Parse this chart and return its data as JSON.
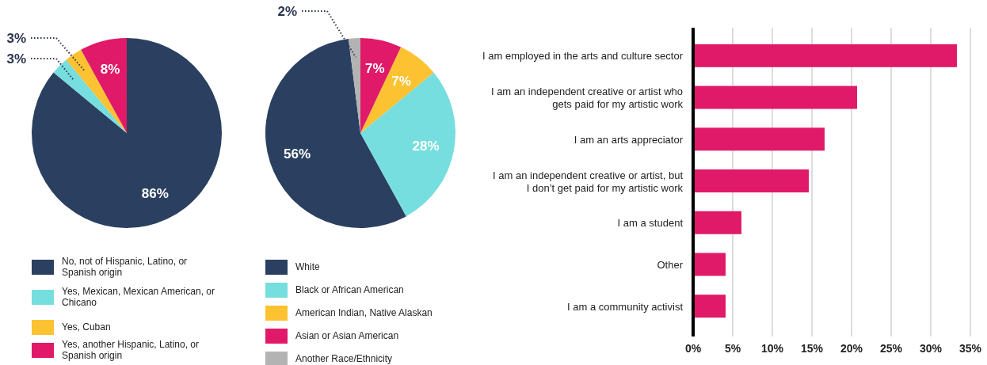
{
  "chart_data": [
    {
      "type": "pie",
      "categories": [
        "No, not of Hispanic, Latino, or Spanish origin",
        "Yes, Mexican, Mexican American, or Chicano",
        "Yes, Cuban",
        "Yes, another Hispanic, Latino, or Spanish origin"
      ],
      "values": [
        86,
        3,
        3,
        8
      ],
      "colors": [
        "#2b4060",
        "#76dede",
        "#fcc232",
        "#e01a68"
      ],
      "value_labels": [
        "86%",
        "3%",
        "3%",
        "8%"
      ],
      "legend": "bottom"
    },
    {
      "type": "pie",
      "categories": [
        "White",
        "Black or African American",
        "American Indian, Native Alaskan",
        "Asian or Asian American",
        "Another Race/Ethnicity"
      ],
      "values": [
        56,
        28,
        7,
        7,
        2
      ],
      "colors": [
        "#2b4060",
        "#76dede",
        "#fcc232",
        "#e01a68",
        "#b3b3b3"
      ],
      "value_labels": [
        "56%",
        "28%",
        "7%",
        "7%",
        "2%"
      ],
      "legend": "bottom"
    },
    {
      "type": "bar",
      "orientation": "horizontal",
      "categories": [
        "I am employed in the arts and culture sector",
        "I am an independent creative or artist who gets paid for my artistic work",
        "I am an arts appreciator",
        "I am an independent creative or artist, but I don’t get paid for my artistic work",
        "I am a student",
        "Other",
        "I am a community activist"
      ],
      "values": [
        33.3,
        20.7,
        16.6,
        14.6,
        6.1,
        4.1,
        4.1
      ],
      "color": "#e01a68",
      "xlim": [
        0,
        35
      ],
      "xticks": [
        {
          "value": 0,
          "label": "0%"
        },
        {
          "value": 5,
          "label": "5%"
        },
        {
          "value": 10,
          "label": "10%"
        },
        {
          "value": 15,
          "label": "15%"
        },
        {
          "value": 20,
          "label": "20%"
        },
        {
          "value": 25,
          "label": "25%"
        },
        {
          "value": 30,
          "label": "30%"
        },
        {
          "value": 35,
          "label": "35%"
        }
      ],
      "grid": "x"
    }
  ]
}
